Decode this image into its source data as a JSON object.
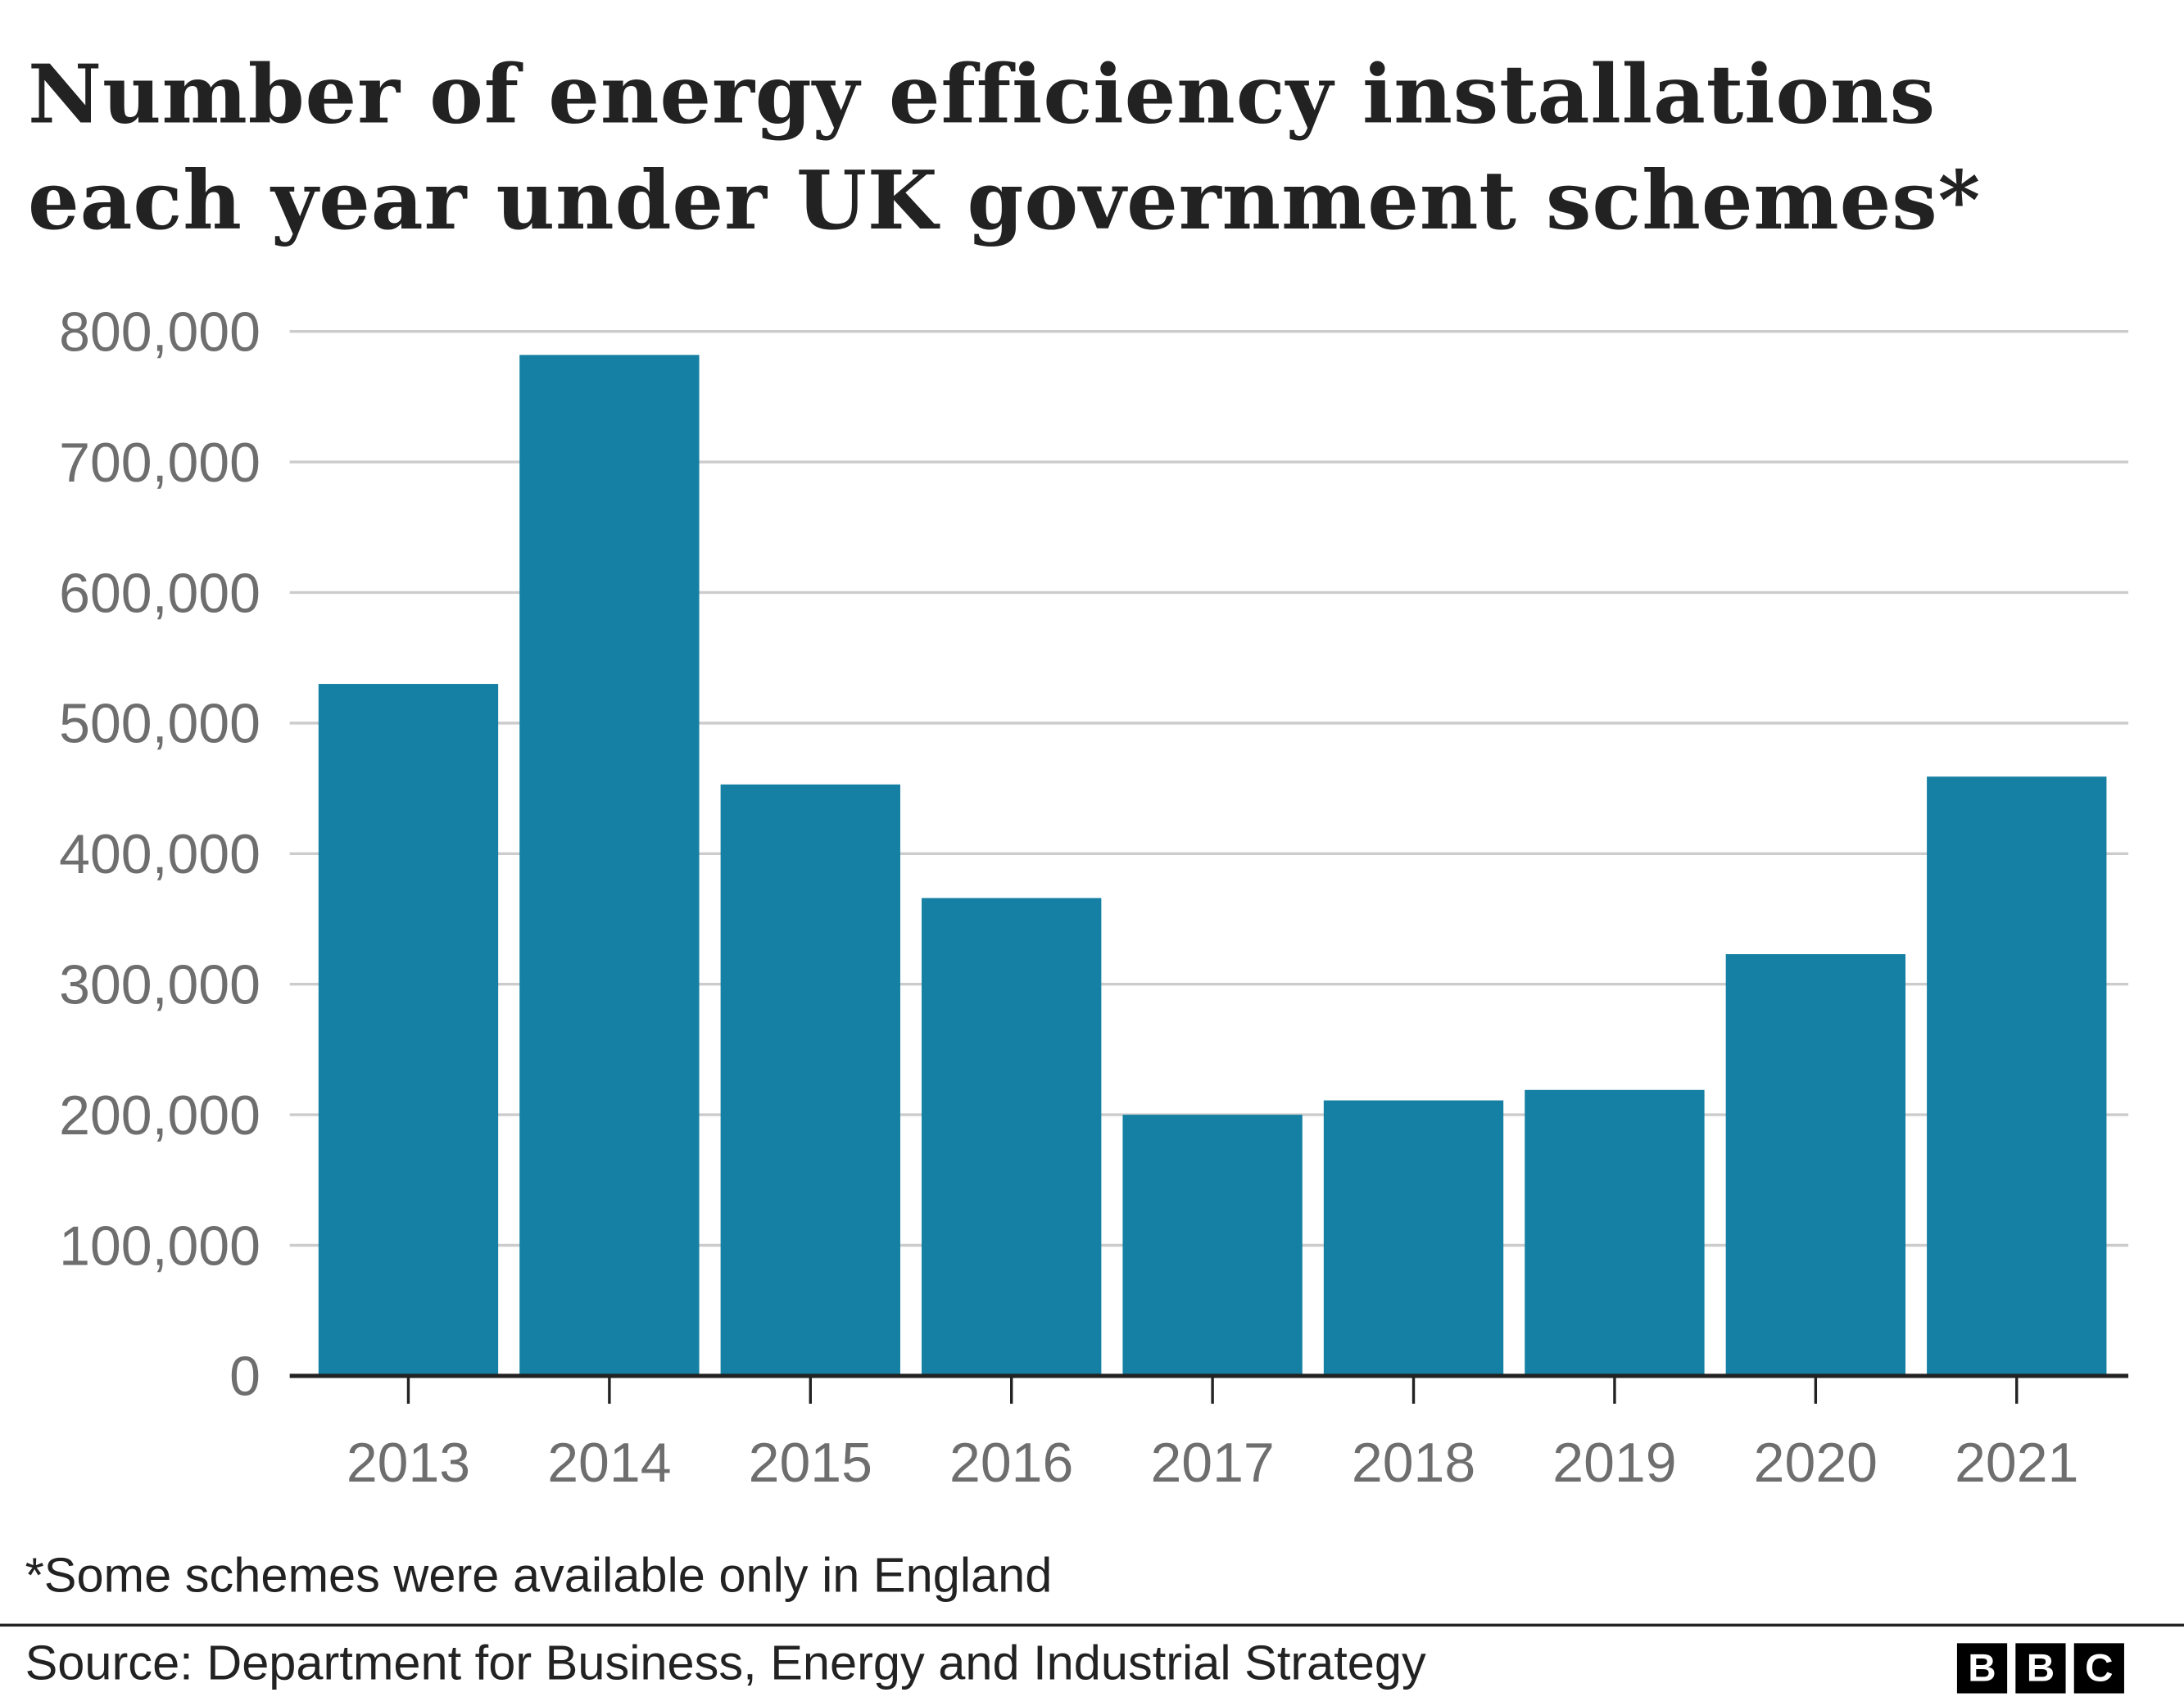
{
  "chart_data": {
    "type": "bar",
    "title": "Number of energy efficiency installations each year under UK government schemes*",
    "categories": [
      "2013",
      "2014",
      "2015",
      "2016",
      "2017",
      "2018",
      "2019",
      "2020",
      "2021"
    ],
    "values": [
      530000,
      782000,
      453000,
      366000,
      200000,
      211000,
      219000,
      323000,
      459000
    ],
    "ylim": [
      0,
      800000
    ],
    "yticks": [
      "0",
      "100,000",
      "200,000",
      "300,000",
      "400,000",
      "500,000",
      "600,000",
      "700,000",
      "800,000"
    ],
    "xlabel": "",
    "ylabel": "",
    "grid": true,
    "bar_color": "#1580a3",
    "footnote": "*Some schemes were available only in England",
    "source": "Source: Department for Business, Energy and Industrial Strategy"
  },
  "logo": [
    "B",
    "B",
    "C"
  ]
}
